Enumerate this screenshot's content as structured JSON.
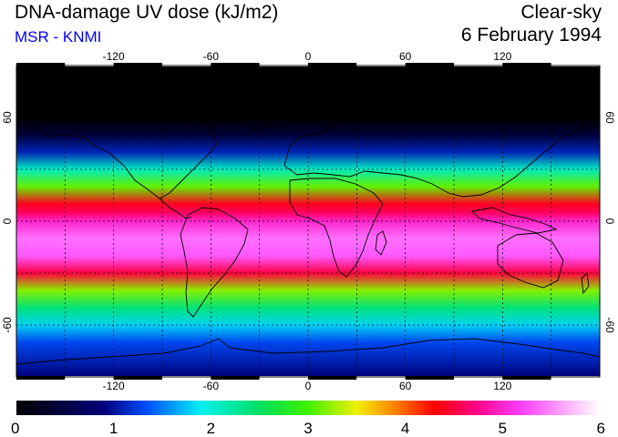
{
  "header": {
    "title": "DNA-damage UV dose (kJ/m2)",
    "credit": "MSR - KNMI",
    "condition": "Clear-sky",
    "date": "6 February 1994"
  },
  "colors": {
    "credit": "#0000ee",
    "land_outline": "#000000",
    "graticule": "#000000"
  },
  "map": {
    "projection": "equirectangular",
    "lon_range": [
      -180,
      180
    ],
    "lat_range": [
      -90,
      90
    ],
    "lon_ticks": [
      "-120",
      "-60",
      "0",
      "60",
      "120"
    ],
    "lat_ticks": [
      "60",
      "0",
      "-60"
    ],
    "grid_lons": [
      -150,
      -120,
      -90,
      -60,
      -30,
      0,
      30,
      60,
      90,
      120,
      150
    ],
    "grid_lats": [
      60,
      30,
      0,
      -30,
      -60
    ],
    "grid_style": "dotted"
  },
  "colorbar": {
    "min": 0,
    "max": 6,
    "labels": [
      "0",
      "1",
      "2",
      "3",
      "4",
      "5",
      "6"
    ],
    "stops": [
      {
        "v": 0.0,
        "c": "#000000"
      },
      {
        "v": 0.9,
        "c": "#00007a"
      },
      {
        "v": 1.35,
        "c": "#0050ff"
      },
      {
        "v": 1.9,
        "c": "#00f0f0"
      },
      {
        "v": 2.5,
        "c": "#00e060"
      },
      {
        "v": 3.0,
        "c": "#40f000"
      },
      {
        "v": 3.5,
        "c": "#f0f000"
      },
      {
        "v": 3.9,
        "c": "#ff8000"
      },
      {
        "v": 4.3,
        "c": "#ff0000"
      },
      {
        "v": 4.7,
        "c": "#ff0080"
      },
      {
        "v": 5.2,
        "c": "#ff40ff"
      },
      {
        "v": 6.0,
        "c": "#ffffff"
      }
    ]
  },
  "uv_bands": [
    {
      "lat": 90,
      "value": 0.0
    },
    {
      "lat": 60,
      "value": 0.0
    },
    {
      "lat": 50,
      "value": 0.4
    },
    {
      "lat": 40,
      "value": 1.1
    },
    {
      "lat": 30,
      "value": 2.1
    },
    {
      "lat": 20,
      "value": 3.1
    },
    {
      "lat": 10,
      "value": 4.4
    },
    {
      "lat": 5,
      "value": 4.6
    },
    {
      "lat": 0,
      "value": 5.0
    },
    {
      "lat": -10,
      "value": 5.4
    },
    {
      "lat": -20,
      "value": 5.3
    },
    {
      "lat": -30,
      "value": 4.5
    },
    {
      "lat": -40,
      "value": 3.2
    },
    {
      "lat": -50,
      "value": 2.4
    },
    {
      "lat": -60,
      "value": 1.8
    },
    {
      "lat": -70,
      "value": 1.3
    },
    {
      "lat": -80,
      "value": 1.1
    },
    {
      "lat": -90,
      "value": 0.9
    }
  ]
}
